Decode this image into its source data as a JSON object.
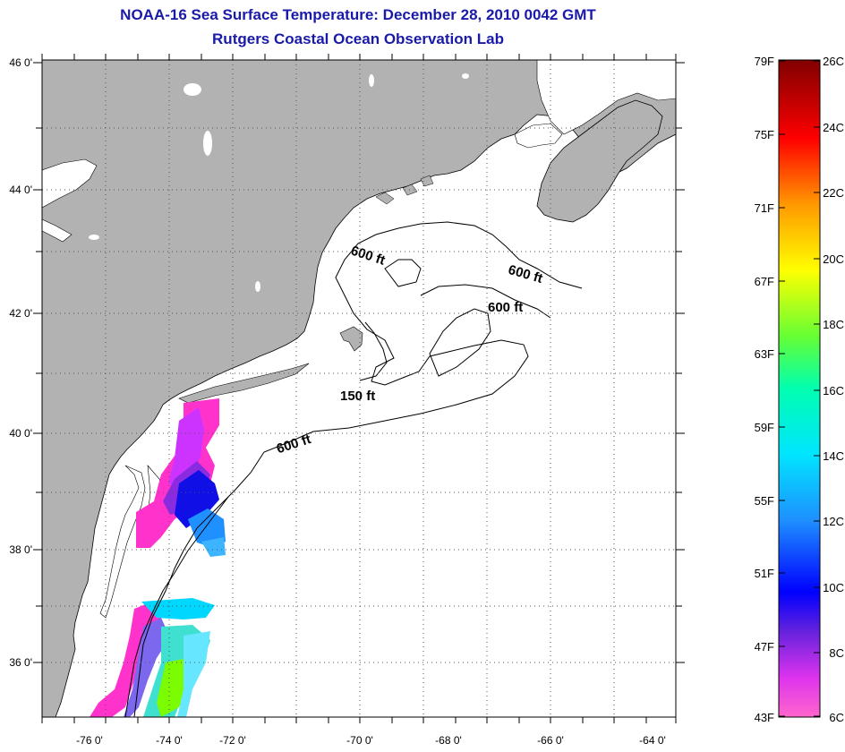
{
  "title": "NOAA-16 Sea Surface Temperature:  December 28, 2010 0042 GMT",
  "subtitle": "Rutgers Coastal Ocean Observation Lab",
  "colors": {
    "land": "#b2b2b2",
    "ocean": "#ffffff",
    "title": "#1a1aa8",
    "grid": "#555555"
  },
  "map": {
    "lon_labels": [
      "-76 0'",
      "-74 0'",
      "-72 0'",
      "-70 0'",
      "-68 0'",
      "-66 0'",
      "-64 0'"
    ],
    "lat_labels": [
      "46 0'",
      "44 0'",
      "42 0'",
      "40 0'",
      "38 0'",
      "36 0'"
    ],
    "contour_labels": [
      "600 ft",
      "600 ft",
      "600 ft",
      "150 ft",
      "600 ft"
    ]
  },
  "colorbar": {
    "fahrenheit_labels": [
      "79F",
      "75F",
      "71F",
      "67F",
      "63F",
      "59F",
      "55F",
      "51F",
      "47F",
      "43F"
    ],
    "celsius_labels": [
      "26C",
      "24C",
      "22C",
      "20C",
      "18C",
      "16C",
      "14C",
      "12C",
      "10C",
      "8C",
      "6C"
    ]
  }
}
